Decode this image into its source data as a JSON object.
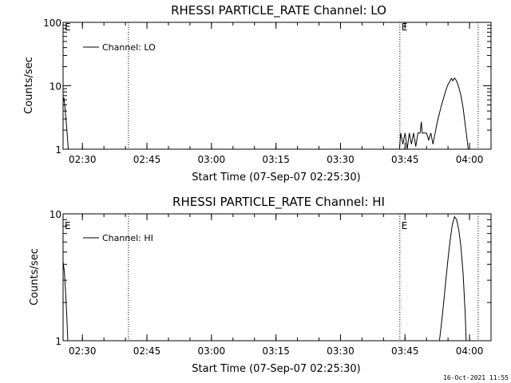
{
  "timestamp": "16-Oct-2021 11:55",
  "chart_data": [
    {
      "type": "line",
      "title": "RHESSI PARTICLE_RATE Channel: LO",
      "xlabel": "Start Time (07-Sep-07 02:25:30)",
      "ylabel": "Counts/sec",
      "y_scale": "log",
      "ylim": [
        1,
        100
      ],
      "y_ticks": [
        1,
        10,
        100
      ],
      "y_tick_labels": [
        "1",
        "10",
        "100"
      ],
      "x_range_minutes_after_start": [
        0,
        99.5
      ],
      "x_ticks": [
        {
          "label": "02:30",
          "minutes": 4.5
        },
        {
          "label": "02:45",
          "minutes": 19.5
        },
        {
          "label": "03:00",
          "minutes": 34.5
        },
        {
          "label": "03:15",
          "minutes": 49.5
        },
        {
          "label": "03:30",
          "minutes": 64.5
        },
        {
          "label": "03:45",
          "minutes": 79.5
        },
        {
          "label": "04:00",
          "minutes": 94.5
        }
      ],
      "vertical_markers": [
        {
          "minutes": 15.2,
          "style": "dotted",
          "label": ""
        },
        {
          "minutes": 78.3,
          "style": "dotted",
          "label": "E"
        },
        {
          "minutes": 96.5,
          "style": "dotted",
          "label": ""
        }
      ],
      "edge_label_left": "E",
      "legend": {
        "position": "top-left",
        "entries": [
          "Channel: LO"
        ]
      },
      "series": [
        {
          "name": "Channel: LO",
          "x": [
            0,
            0.2,
            0.5,
            0.9,
            1.2,
            78.2,
            78.5,
            79.0,
            79.5,
            80.0,
            80.5,
            81.0,
            81.5,
            82.0,
            82.5,
            83.0,
            83.3,
            83.5,
            84.0,
            84.5,
            85.0,
            85.5,
            86.0,
            86.5,
            87.0,
            87.5,
            88.0,
            88.5,
            89.0,
            89.5,
            90.0,
            90.3,
            90.6,
            91.0,
            91.3,
            91.6,
            92.0,
            92.5,
            93.0,
            93.5,
            94.0,
            94.2
          ],
          "y": [
            5.5,
            6.5,
            4.0,
            2.0,
            1.0,
            1.0,
            1.8,
            1.2,
            1.8,
            1.0,
            1.8,
            1.2,
            1.8,
            1.1,
            1.8,
            1.8,
            2.7,
            1.8,
            1.8,
            1.8,
            1.4,
            1.8,
            1.2,
            1.8,
            2.7,
            3.7,
            5.0,
            6.5,
            8.5,
            10.5,
            12.0,
            13.0,
            12.0,
            13.2,
            12.5,
            11.5,
            9.5,
            7.0,
            4.5,
            2.4,
            1.3,
            1.0
          ]
        }
      ]
    },
    {
      "type": "line",
      "title": "RHESSI PARTICLE_RATE Channel: HI",
      "xlabel": "Start Time (07-Sep-07 02:25:30)",
      "ylabel": "Counts/sec",
      "y_scale": "log",
      "ylim": [
        1,
        10
      ],
      "y_ticks": [
        1,
        10
      ],
      "y_tick_labels": [
        "1",
        "10"
      ],
      "x_range_minutes_after_start": [
        0,
        99.5
      ],
      "x_ticks": [
        {
          "label": "02:30",
          "minutes": 4.5
        },
        {
          "label": "02:45",
          "minutes": 19.5
        },
        {
          "label": "03:00",
          "minutes": 34.5
        },
        {
          "label": "03:15",
          "minutes": 49.5
        },
        {
          "label": "03:30",
          "minutes": 64.5
        },
        {
          "label": "03:45",
          "minutes": 79.5
        },
        {
          "label": "04:00",
          "minutes": 94.5
        }
      ],
      "vertical_markers": [
        {
          "minutes": 15.2,
          "style": "dotted",
          "label": ""
        },
        {
          "minutes": 78.3,
          "style": "dotted",
          "label": "E"
        },
        {
          "minutes": 96.5,
          "style": "dotted",
          "label": ""
        }
      ],
      "edge_label_left": "E",
      "legend": {
        "position": "top-left",
        "entries": [
          "Channel: HI"
        ]
      },
      "series": [
        {
          "name": "Channel: HI",
          "x": [
            0,
            0.3,
            0.6,
            0.9,
            1.1,
            87.5,
            88.0,
            88.5,
            89.0,
            89.5,
            90.0,
            90.5,
            91.0,
            91.5,
            92.0,
            92.5,
            93.0,
            93.5,
            93.7
          ],
          "y": [
            4.2,
            3.5,
            2.4,
            1.5,
            1.0,
            1.0,
            1.4,
            2.0,
            3.0,
            4.4,
            6.2,
            8.2,
            9.5,
            9.0,
            7.5,
            5.5,
            3.4,
            1.6,
            1.0
          ]
        }
      ]
    }
  ]
}
